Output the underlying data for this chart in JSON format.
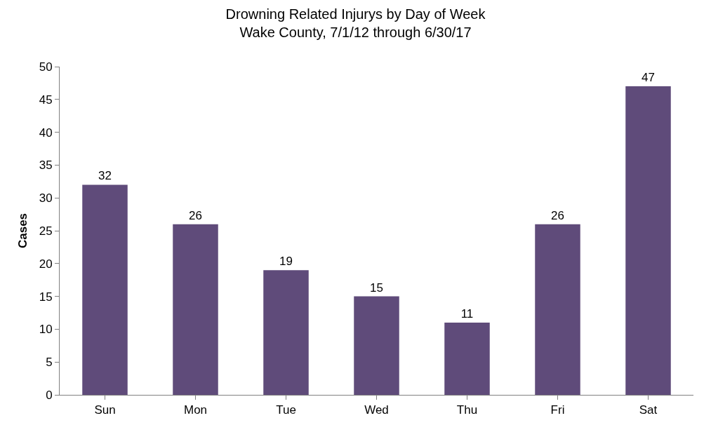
{
  "chart_data": {
    "type": "bar",
    "title": "Drowning Related Injurys by Day of Week\nWake County, 7/1/12 through 6/30/17",
    "ylabel": "Cases",
    "categories": [
      "Sun",
      "Mon",
      "Tue",
      "Wed",
      "Thu",
      "Fri",
      "Sat"
    ],
    "values": [
      32,
      26,
      19,
      15,
      11,
      26,
      47
    ],
    "color": "#5f4b7a",
    "ylim": [
      0,
      50
    ],
    "yticks": [
      0,
      5,
      10,
      15,
      20,
      25,
      30,
      35,
      40,
      45,
      50
    ],
    "data_labels": true
  }
}
